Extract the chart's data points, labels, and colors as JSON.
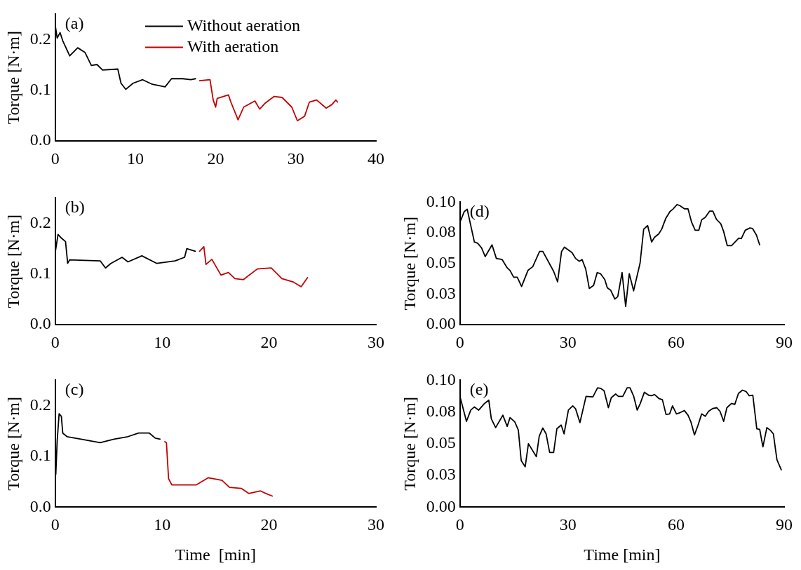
{
  "chart_data": [
    {
      "type": "line",
      "ylabel": "Torque [N·m]",
      "annotations": [
        "(a)"
      ],
      "legend": "top",
      "marker": "none",
      "grid": false,
      "xlim": [
        0,
        40
      ],
      "xticks": [
        0,
        10,
        20,
        30,
        40
      ],
      "ylim": [
        0,
        0.25
      ],
      "yticks": [
        {
          "value": 0,
          "label": "0.0"
        },
        0.1,
        0.2
      ],
      "series": [
        {
          "name": "Without aeration",
          "color": "#000000",
          "x": [
            0,
            0.24,
            0.6,
            0.93,
            1.8,
            2.8,
            3.7,
            4.5,
            5.2,
            5.9,
            7.8,
            8.2,
            8.8,
            9.7,
            10.9,
            12.1,
            13.7,
            14.5,
            15.9,
            16.9,
            17.5
          ],
          "values": [
            0.228,
            0.203,
            0.214,
            0.198,
            0.168,
            0.184,
            0.175,
            0.149,
            0.151,
            0.14,
            0.142,
            0.114,
            0.102,
            0.114,
            0.121,
            0.112,
            0.107,
            0.123,
            0.123,
            0.121,
            0.123
          ]
        },
        {
          "name": "With aeration",
          "color": "#c00000",
          "x": [
            18.0,
            19.3,
            19.7,
            20.0,
            20.2,
            21.6,
            21.9,
            22.8,
            23.5,
            24.9,
            25.5,
            26.2,
            27.3,
            28.3,
            29.5,
            30.2,
            31.1,
            31.7,
            32.6,
            33.8,
            34.5,
            35.0,
            35.2
          ],
          "values": [
            0.119,
            0.121,
            0.081,
            0.067,
            0.084,
            0.091,
            0.077,
            0.042,
            0.067,
            0.079,
            0.063,
            0.075,
            0.088,
            0.086,
            0.067,
            0.04,
            0.049,
            0.077,
            0.081,
            0.065,
            0.072,
            0.081,
            0.077
          ]
        }
      ]
    },
    {
      "type": "line",
      "ylabel": "Torque [N·m]",
      "annotations": [
        "(b)"
      ],
      "marker": "none",
      "grid": false,
      "xlim": [
        0,
        30
      ],
      "xticks": [
        0,
        10,
        20,
        30
      ],
      "ylim": [
        0,
        0.25
      ],
      "yticks": [
        {
          "value": 0,
          "label": "0.0"
        },
        0.1,
        0.2
      ],
      "series": [
        {
          "color": "#000000",
          "x": [
            0,
            0.26,
            0.57,
            0.96,
            1.16,
            1.34,
            4.2,
            4.7,
            5.2,
            6.25,
            6.8,
            8.1,
            9.5,
            11.2,
            12.1,
            12.3,
            13.1
          ],
          "values": [
            0.143,
            0.178,
            0.171,
            0.164,
            0.121,
            0.128,
            0.126,
            0.112,
            0.121,
            0.133,
            0.124,
            0.136,
            0.121,
            0.126,
            0.133,
            0.15,
            0.145
          ]
        },
        {
          "color": "#c00000",
          "x": [
            13.5,
            13.9,
            14.1,
            14.65,
            15.5,
            16.2,
            16.8,
            17.6,
            18.9,
            20.2,
            21.2,
            22.3,
            23.0,
            23.6
          ],
          "values": [
            0.145,
            0.154,
            0.119,
            0.129,
            0.098,
            0.103,
            0.091,
            0.089,
            0.11,
            0.112,
            0.091,
            0.084,
            0.075,
            0.093
          ]
        }
      ]
    },
    {
      "type": "line",
      "xlabel": "Time  [min]",
      "ylabel": "Torque [N·m]",
      "annotations": [
        "(c)"
      ],
      "marker": "none",
      "grid": false,
      "xlim": [
        0,
        30
      ],
      "xticks": [
        0,
        10,
        20,
        30
      ],
      "ylim": [
        0,
        0.25
      ],
      "yticks": [
        {
          "value": 0,
          "label": "0.0"
        },
        0.1,
        0.2
      ],
      "series": [
        {
          "color": "#000000",
          "x": [
            0.05,
            0.18,
            0.36,
            0.57,
            0.7,
            1.1,
            2.4,
            4.2,
            5.5,
            6.8,
            7.8,
            8.8,
            9.35,
            9.8
          ],
          "values": [
            0.065,
            0.131,
            0.184,
            0.179,
            0.146,
            0.139,
            0.134,
            0.127,
            0.134,
            0.139,
            0.146,
            0.146,
            0.136,
            0.134
          ]
        },
        {
          "color": "#c00000",
          "x": [
            10.25,
            10.4,
            10.6,
            10.9,
            11.9,
            13.2,
            14.3,
            15.6,
            16.3,
            17.4,
            18.1,
            19.2,
            19.7,
            20.3
          ],
          "values": [
            0.129,
            0.127,
            0.056,
            0.044,
            0.044,
            0.044,
            0.058,
            0.053,
            0.039,
            0.037,
            0.027,
            0.032,
            0.027,
            0.022
          ]
        }
      ]
    },
    {
      "type": "line",
      "ylabel": "Torque [N·m]",
      "annotations": [
        "(d)"
      ],
      "marker": "none",
      "grid": false,
      "xlim": [
        0,
        90
      ],
      "xticks": [
        0,
        30,
        60,
        90
      ],
      "ylim": [
        0,
        0.1
      ],
      "yticks": [
        {
          "value": 0,
          "label": "0.00"
        },
        {
          "value": 0.025,
          "label": "0.03"
        },
        0.05,
        {
          "value": 0.075,
          "label": "0.08"
        },
        {
          "value": 0.1,
          "label": "0.10"
        }
      ],
      "series": [
        {
          "color": "#000000",
          "x": [
            0,
            1.2,
            2.0,
            4.0,
            4.9,
            6.0,
            7.0,
            8.9,
            10.1,
            11.7,
            13.1,
            13.9,
            14.9,
            15.9,
            17.1,
            18.9,
            20.2,
            22.1,
            23.0,
            26.0,
            27.1,
            28.2,
            29.0,
            31.1,
            32.1,
            33.1,
            33.9,
            34.9,
            35.9,
            37.1,
            38.1,
            39.0,
            40.2,
            40.9,
            41.8,
            43.0,
            43.8,
            45.0,
            46.0,
            47.0,
            48.2,
            50.0,
            51.0,
            52.1,
            53.2,
            54.0,
            55.2,
            56.0,
            57.1,
            58.3,
            59.1,
            60.3,
            61.1,
            62.3,
            63.3,
            64.3,
            65.3,
            66.3,
            67.1,
            68.1,
            69.3,
            70.2,
            71.2,
            72.4,
            73.2,
            74.2,
            75.4,
            77.4,
            78.1,
            79.2,
            80.5,
            81.2,
            82.3,
            83.2
          ],
          "values": [
            0.0837,
            0.0924,
            0.0943,
            0.0675,
            0.0665,
            0.0627,
            0.0556,
            0.0652,
            0.0541,
            0.0532,
            0.0465,
            0.0442,
            0.0388,
            0.0388,
            0.0312,
            0.0445,
            0.0474,
            0.0598,
            0.0598,
            0.0436,
            0.035,
            0.0598,
            0.0633,
            0.0589,
            0.0541,
            0.0518,
            0.0532,
            0.0455,
            0.0296,
            0.0321,
            0.0426,
            0.0417,
            0.0369,
            0.0302,
            0.0283,
            0.021,
            0.0229,
            0.0426,
            0.0149,
            0.0417,
            0.0277,
            0.0503,
            0.078,
            0.0809,
            0.0675,
            0.0713,
            0.0742,
            0.078,
            0.0866,
            0.0924,
            0.0943,
            0.0981,
            0.0971,
            0.0946,
            0.0946,
            0.0837,
            0.0771,
            0.0771,
            0.0857,
            0.0876,
            0.0927,
            0.0927,
            0.086,
            0.0824,
            0.0761,
            0.0646,
            0.0646,
            0.0707,
            0.0703,
            0.0771,
            0.079,
            0.0786,
            0.0732,
            0.0652
          ]
        }
      ]
    },
    {
      "type": "line",
      "xlabel": "Time [min]",
      "ylabel": "Torque [N·m]",
      "annotations": [
        "(e)"
      ],
      "marker": "none",
      "grid": false,
      "xlim": [
        0,
        90
      ],
      "xticks": [
        0,
        30,
        60,
        90
      ],
      "ylim": [
        0,
        0.1
      ],
      "yticks": [
        {
          "value": 0,
          "label": "0.00"
        },
        {
          "value": 0.025,
          "label": "0.03"
        },
        0.05,
        {
          "value": 0.075,
          "label": "0.08"
        },
        {
          "value": 0.1,
          "label": "0.10"
        }
      ],
      "series": [
        {
          "color": "#000000",
          "x": [
            0,
            1.8,
            3.0,
            4.0,
            5.2,
            6.7,
            8.0,
            8.7,
            9.9,
            11.9,
            13.1,
            13.9,
            15.2,
            16.2,
            17.0,
            18.1,
            19.0,
            21.2,
            22.0,
            23.0,
            23.9,
            24.9,
            26.0,
            26.9,
            28.1,
            28.9,
            30.1,
            31.3,
            32.1,
            33.3,
            35.0,
            36.9,
            38.2,
            39.0,
            40.0,
            41.2,
            42.0,
            43.2,
            44.0,
            45.2,
            46.4,
            47.2,
            48.2,
            49.2,
            50.0,
            51.2,
            52.4,
            53.2,
            54.0,
            55.2,
            56.2,
            57.2,
            58.2,
            59.0,
            60.1,
            61.1,
            62.3,
            63.3,
            64.1,
            65.1,
            66.1,
            67.1,
            68.1,
            69.0,
            70.2,
            71.3,
            72.2,
            73.2,
            74.1,
            75.4,
            76.3,
            77.3,
            78.4,
            79.4,
            80.3,
            81.3,
            82.4,
            83.2,
            84.1,
            85.2,
            86.1,
            87.0,
            88.0,
            89.2
          ],
          "values": [
            0.0873,
            0.0676,
            0.0765,
            0.079,
            0.0765,
            0.0814,
            0.0843,
            0.0696,
            0.0627,
            0.0725,
            0.0637,
            0.0706,
            0.0673,
            0.0608,
            0.0367,
            0.0318,
            0.05,
            0.0398,
            0.0559,
            0.0624,
            0.0578,
            0.0431,
            0.0431,
            0.0618,
            0.0647,
            0.0578,
            0.0765,
            0.0798,
            0.0775,
            0.0667,
            0.0873,
            0.0869,
            0.0941,
            0.0937,
            0.0918,
            0.0784,
            0.0863,
            0.0892,
            0.0873,
            0.0873,
            0.0941,
            0.0941,
            0.0876,
            0.0765,
            0.0814,
            0.0906,
            0.0882,
            0.0878,
            0.0888,
            0.0857,
            0.0847,
            0.0731,
            0.0735,
            0.0798,
            0.0735,
            0.0745,
            0.0761,
            0.0725,
            0.0673,
            0.0569,
            0.0647,
            0.0735,
            0.0716,
            0.0755,
            0.0778,
            0.0784,
            0.0755,
            0.0676,
            0.0784,
            0.0818,
            0.081,
            0.0896,
            0.0922,
            0.0912,
            0.0878,
            0.0882,
            0.0618,
            0.0614,
            0.0475,
            0.0627,
            0.0608,
            0.0578,
            0.0373,
            0.0294
          ]
        }
      ]
    }
  ]
}
